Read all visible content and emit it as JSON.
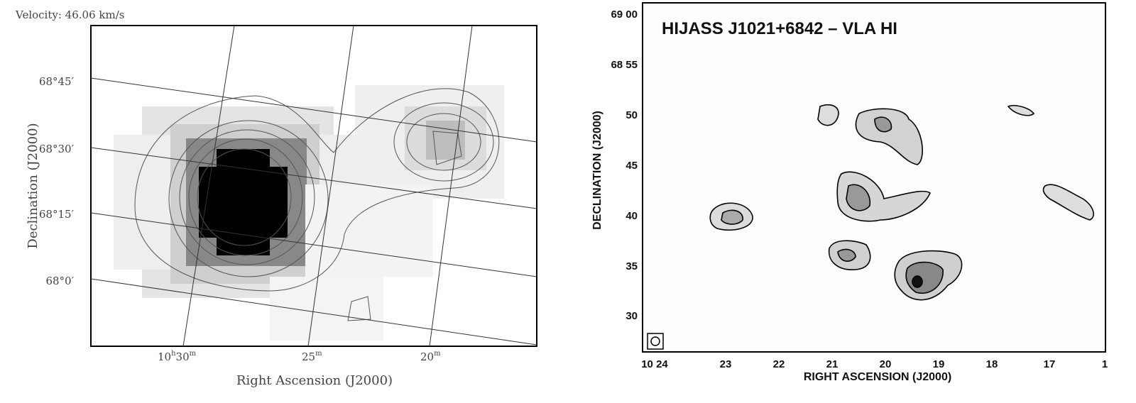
{
  "left_panel": {
    "velocity_label": "Velocity: 46.06 km/s",
    "y_axis_title": "Declination (J2000)",
    "x_axis_title": "Right Ascension (J2000)",
    "y_tick_labels": [
      "68°45′",
      "68°30′",
      "68°15′",
      "68°0′"
    ],
    "x_tick_labels": [
      [
        "10",
        "h",
        "30",
        "m"
      ],
      [
        "25",
        "m"
      ],
      [
        "20",
        "m"
      ]
    ]
  },
  "right_panel": {
    "title": "HIJASS J1021+6842 – VLA HI",
    "y_axis_title": "DECLINATION (J2000)",
    "x_axis_title": "RIGHT ASCENSION (J2000)",
    "y_tick_labels": [
      "69 00",
      "68 55",
      "50",
      "45",
      "40",
      "35",
      "30"
    ],
    "x_tick_labels": [
      "10 24",
      "23",
      "22",
      "21",
      "20",
      "19",
      "18",
      "17",
      "1"
    ]
  }
}
